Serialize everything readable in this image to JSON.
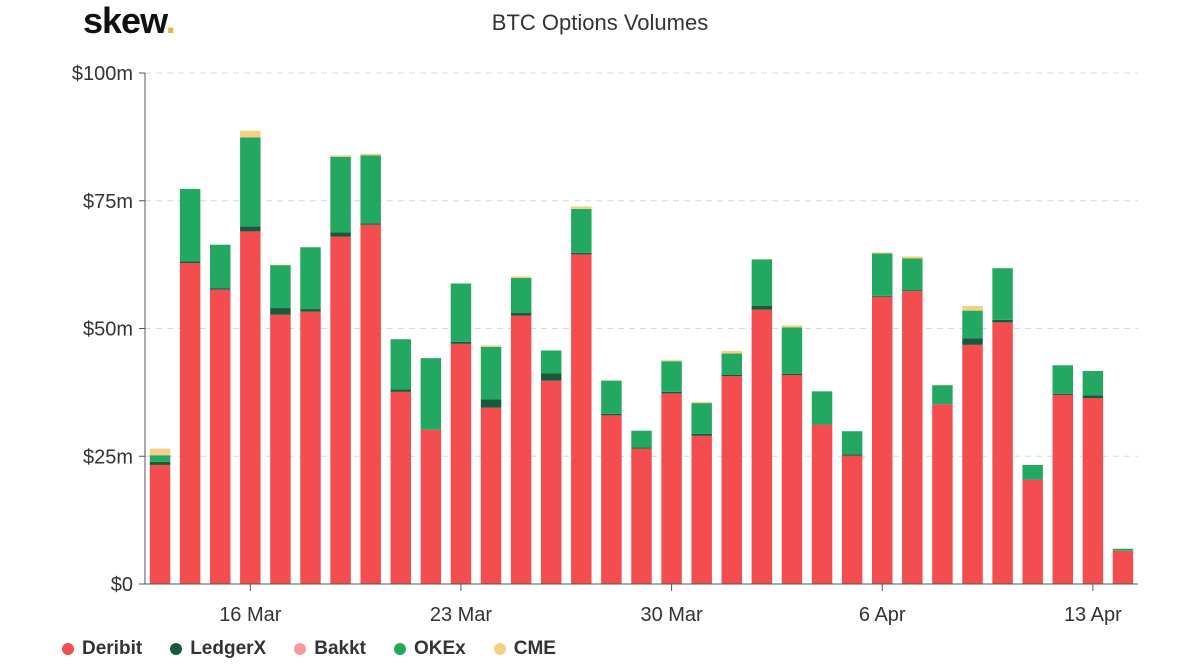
{
  "brand": {
    "name": "skew",
    "dot": ".",
    "dot_color": "#e9b73a"
  },
  "chart_data": {
    "type": "bar",
    "stacked": true,
    "title": "BTC Options Volumes",
    "xlabel": "",
    "ylabel": "",
    "ylim": [
      0,
      100
    ],
    "y_unit": "$m",
    "y_ticks": [
      {
        "value": 0,
        "label": "$0"
      },
      {
        "value": 25,
        "label": "$25m"
      },
      {
        "value": 50,
        "label": "$50m"
      },
      {
        "value": 75,
        "label": "$75m"
      },
      {
        "value": 100,
        "label": "$100m"
      }
    ],
    "x_ticks": [
      {
        "category": "2020-03-16",
        "label": "16 Mar"
      },
      {
        "category": "2020-03-23",
        "label": "23 Mar"
      },
      {
        "category": "2020-03-30",
        "label": "30 Mar"
      },
      {
        "category": "2020-04-06",
        "label": "6 Apr"
      },
      {
        "category": "2020-04-13",
        "label": "13 Apr"
      }
    ],
    "grid": "horizontal dashed",
    "legend_position": "bottom-left",
    "categories": [
      "2020-03-13",
      "2020-03-14",
      "2020-03-15",
      "2020-03-16",
      "2020-03-17",
      "2020-03-18",
      "2020-03-19",
      "2020-03-20",
      "2020-03-21",
      "2020-03-22",
      "2020-03-23",
      "2020-03-24",
      "2020-03-25",
      "2020-03-26",
      "2020-03-27",
      "2020-03-28",
      "2020-03-29",
      "2020-03-30",
      "2020-03-31",
      "2020-04-01",
      "2020-04-02",
      "2020-04-03",
      "2020-04-04",
      "2020-04-05",
      "2020-04-06",
      "2020-04-07",
      "2020-04-08",
      "2020-04-09",
      "2020-04-10",
      "2020-04-11",
      "2020-04-12",
      "2020-04-13",
      "2020-04-14"
    ],
    "series": [
      {
        "name": "Deribit",
        "color": "#f44d4f",
        "values": [
          23.3,
          62.8,
          57.6,
          69.0,
          52.7,
          53.3,
          68.0,
          70.3,
          37.6,
          30.2,
          47.0,
          34.5,
          52.5,
          39.8,
          64.5,
          33.0,
          26.5,
          37.3,
          29.0,
          40.7,
          53.7,
          40.9,
          31.2,
          25.1,
          56.2,
          57.3,
          35.2,
          46.8,
          51.2,
          20.4,
          37.0,
          36.4,
          6.5
        ]
      },
      {
        "name": "LedgerX",
        "color": "#17593a",
        "values": [
          0.6,
          0.3,
          0.3,
          1.0,
          1.3,
          0.5,
          0.8,
          0.3,
          0.5,
          0.0,
          0.4,
          1.6,
          0.6,
          1.4,
          0.3,
          0.3,
          0.2,
          0.3,
          0.4,
          0.2,
          0.7,
          0.2,
          0.0,
          0.3,
          0.2,
          0.2,
          0.0,
          1.3,
          0.5,
          0.1,
          0.2,
          0.5,
          0.0
        ]
      },
      {
        "name": "Bakkt",
        "color": "#f79c9a",
        "values": [
          0,
          0,
          0,
          0,
          0,
          0,
          0,
          0,
          0,
          0,
          0,
          0,
          0,
          0,
          0,
          0,
          0,
          0,
          0,
          0,
          0,
          0,
          0,
          0,
          0,
          0,
          0,
          0,
          0,
          0,
          0,
          0,
          0
        ]
      },
      {
        "name": "OKEx",
        "color": "#23a862",
        "values": [
          1.3,
          14.2,
          8.5,
          17.4,
          8.4,
          12.1,
          14.8,
          13.3,
          9.8,
          14.0,
          11.4,
          10.3,
          6.8,
          4.5,
          8.6,
          6.5,
          3.3,
          6.0,
          6.0,
          4.2,
          9.1,
          9.1,
          6.5,
          4.5,
          8.3,
          6.2,
          3.7,
          5.4,
          10.1,
          2.8,
          5.6,
          4.8,
          0.4
        ]
      },
      {
        "name": "CME",
        "color": "#f4d182",
        "values": [
          1.3,
          0,
          0,
          1.3,
          0.1,
          0,
          0.3,
          0.3,
          0,
          0,
          0,
          0.3,
          0.3,
          0,
          0.5,
          0,
          0,
          0.2,
          0.2,
          0.5,
          0.1,
          0.4,
          0,
          0,
          0.2,
          0.4,
          0,
          0.9,
          0,
          0,
          0,
          0,
          0
        ]
      }
    ]
  }
}
